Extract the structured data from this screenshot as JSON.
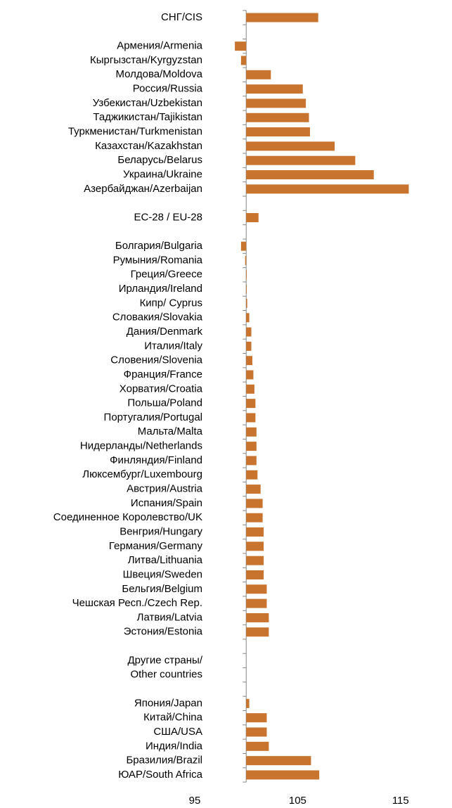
{
  "chart_data": {
    "type": "hbar",
    "base": 100,
    "color": "#c8742f",
    "categories": [
      "СНГ/CIS",
      null,
      "Армения/Armenia",
      "Кыргызстан/Kyrgyzstan",
      "Молдова/Moldova",
      "Россия/Russia",
      "Узбекистан/Uzbekistan",
      "Таджикистан/Tajikistan",
      "Туркменистан/Turkmenistan",
      "Казахстан/Kazakhstan",
      "Беларусь/Belarus",
      "Украина/Ukraine",
      "Азербайджан/Azerbaijan",
      null,
      "ЕС-28 / EU-28",
      null,
      "Болгария/Bulgaria",
      "Румыния/Romania",
      "Греция/Greece",
      "Ирландия/Ireland",
      "Кипр/ Cyprus",
      "Словакия/Slovakia",
      "Дания/Denmark",
      "Италия/Italy",
      "Словения/Slovenia",
      "Франция/France",
      "Хорватия/Croatia",
      "Польша/Poland",
      "Португалия/Portugal",
      "Мальта/Malta",
      "Нидерланды/Netherlands",
      "Финляндия/Finland",
      "Люксембург/Luxembourg",
      "Австрия/Austria",
      "Испания/Spain",
      "Соединенное Королевство/UK",
      "Венгрия/Hungary",
      "Германия/Germany",
      "Литва/Lithuania",
      "Швеция/Sweden",
      "Бельгия/Belgium",
      "Чешская Респ./Czech Rep.",
      "Латвия/Latvia",
      "Эстония/Estonia",
      null,
      "Другие страны/",
      "Other countries",
      null,
      "Япония/Japan",
      "Китай/China",
      "США/USA",
      "Индия/India",
      "Бразилия/Brazil",
      "ЮАР/South Africa"
    ],
    "values": [
      107,
      null,
      98.9,
      99.5,
      102.4,
      105.5,
      105.8,
      106.1,
      106.2,
      108.6,
      110.6,
      112.4,
      115.8,
      null,
      101.2,
      null,
      99.5,
      99.9,
      100,
      100,
      100.1,
      100.3,
      100.5,
      100.5,
      100.6,
      100.7,
      100.8,
      100.9,
      100.9,
      101.0,
      101.0,
      101.0,
      101.1,
      101.4,
      101.6,
      101.6,
      101.7,
      101.7,
      101.7,
      101.7,
      102.0,
      102.0,
      102.2,
      102.2,
      null,
      null,
      null,
      null,
      100.3,
      102.0,
      102.0,
      102.2,
      106.3,
      107.1
    ],
    "xlim": [
      95,
      120
    ],
    "xticks": [
      95,
      105,
      115
    ]
  }
}
